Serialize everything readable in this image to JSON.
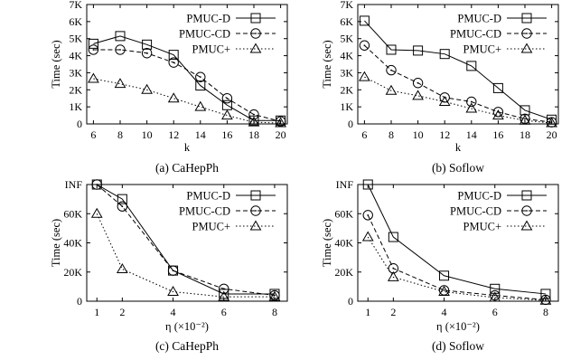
{
  "chart_data": [
    {
      "type": "line",
      "caption": "(a)  CaHepPh",
      "xlabel": "k",
      "ylabel": "Time (sec)",
      "x": [
        6,
        8,
        10,
        12,
        14,
        16,
        18,
        20
      ],
      "xlim": [
        5.5,
        20.5
      ],
      "ylim": [
        0,
        7000
      ],
      "yticks": [
        0,
        1000,
        2000,
        3000,
        4000,
        5000,
        6000,
        7000
      ],
      "yticklabels": [
        "0",
        "1K",
        "2K",
        "3K",
        "4K",
        "5K",
        "6K",
        "7K"
      ],
      "series": [
        {
          "name": "PMUC-D",
          "values": [
            4700,
            5150,
            4650,
            4050,
            2250,
            1100,
            200,
            200
          ]
        },
        {
          "name": "PMUC-CD",
          "values": [
            4350,
            4350,
            4150,
            3600,
            2750,
            1500,
            550,
            150
          ]
        },
        {
          "name": "PMUC+",
          "values": [
            2650,
            2350,
            2000,
            1500,
            1000,
            500,
            100,
            50
          ]
        }
      ],
      "legend": "top-right"
    },
    {
      "type": "line",
      "caption": "(b)  Soflow",
      "xlabel": "k",
      "ylabel": "Time (sec)",
      "x": [
        6,
        8,
        10,
        12,
        14,
        16,
        18,
        20
      ],
      "xlim": [
        5.5,
        20.5
      ],
      "ylim": [
        0,
        7000
      ],
      "yticks": [
        0,
        1000,
        2000,
        3000,
        4000,
        5000,
        6000,
        7000
      ],
      "yticklabels": [
        "0",
        "1K",
        "2K",
        "3K",
        "4K",
        "5K",
        "6K",
        "7K"
      ],
      "series": [
        {
          "name": "PMUC-D",
          "values": [
            6050,
            4350,
            4300,
            4100,
            3400,
            2100,
            800,
            250
          ]
        },
        {
          "name": "PMUC-CD",
          "values": [
            4600,
            3150,
            2400,
            1550,
            1300,
            700,
            300,
            100
          ]
        },
        {
          "name": "PMUC+",
          "values": [
            2750,
            1950,
            1650,
            1300,
            900,
            500,
            200,
            50
          ]
        }
      ],
      "legend": "top-right"
    },
    {
      "type": "line",
      "caption": "(c)  CaHepPh",
      "xlabel": "η (×10⁻²)",
      "ylabel": "Time (sec)",
      "x": [
        1,
        2,
        4,
        6,
        8
      ],
      "xlim": [
        0.6,
        8.5
      ],
      "ylim": [
        0,
        80000
      ],
      "yticks": [
        0,
        20000,
        40000,
        60000,
        80000
      ],
      "yticklabels": [
        "0",
        "20K",
        "40K",
        "60K",
        "INF"
      ],
      "series": [
        {
          "name": "PMUC-D",
          "values": [
            80000,
            70000,
            21000,
            5000,
            5000
          ]
        },
        {
          "name": "PMUC-CD",
          "values": [
            80000,
            65000,
            21000,
            8500,
            4000
          ]
        },
        {
          "name": "PMUC+",
          "values": [
            60000,
            22000,
            6500,
            3000,
            3000
          ]
        }
      ],
      "legend": "top-right"
    },
    {
      "type": "line",
      "caption": "(d)  Soflow",
      "xlabel": "η (×10⁻²)",
      "ylabel": "Time (sec)",
      "x": [
        1,
        2,
        4,
        6,
        8
      ],
      "xlim": [
        0.6,
        8.5
      ],
      "ylim": [
        0,
        80000
      ],
      "yticks": [
        0,
        20000,
        40000,
        60000,
        80000
      ],
      "yticklabels": [
        "0",
        "20K",
        "40K",
        "60K",
        "INF"
      ],
      "series": [
        {
          "name": "PMUC-D",
          "values": [
            80000,
            44000,
            17500,
            8500,
            5000
          ]
        },
        {
          "name": "PMUC-CD",
          "values": [
            59000,
            22500,
            7500,
            4000,
            1000
          ]
        },
        {
          "name": "PMUC+",
          "values": [
            44000,
            16500,
            6500,
            2500,
            500
          ]
        }
      ],
      "legend": "top-right"
    }
  ]
}
